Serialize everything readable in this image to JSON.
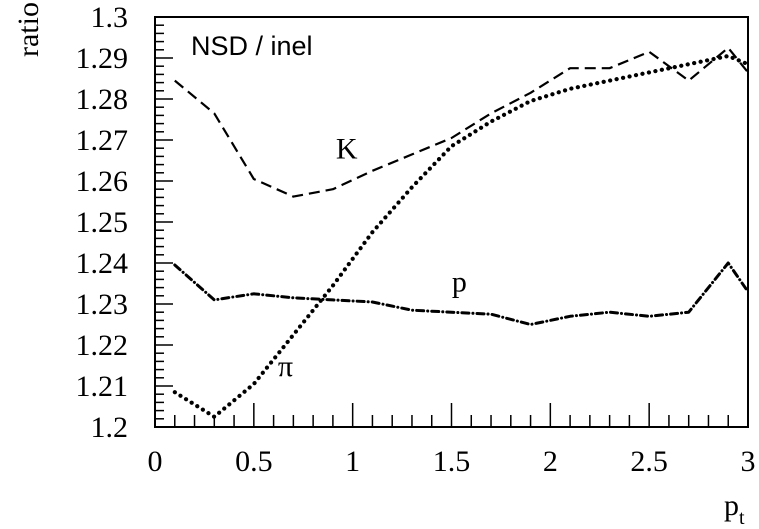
{
  "chart_data": {
    "type": "line",
    "title": "",
    "box_label": "NSD / inel",
    "xlabel": "p",
    "xlabel_sub": "t",
    "ylabel": "ratio",
    "xlim": [
      0,
      3
    ],
    "ylim": [
      1.2,
      1.3
    ],
    "x_ticks": [
      "0",
      "0.5",
      "1",
      "1.5",
      "2",
      "2.5",
      "3"
    ],
    "y_ticks": [
      "1.2",
      "1.21",
      "1.22",
      "1.23",
      "1.24",
      "1.25",
      "1.26",
      "1.27",
      "1.28",
      "1.29",
      "1.3"
    ],
    "grid": false,
    "series": [
      {
        "name": "K",
        "style": "dashed",
        "label_at": [
          0.97,
          1.2655
        ],
        "points": [
          [
            0.1,
            1.2845
          ],
          [
            0.3,
            1.2765
          ],
          [
            0.5,
            1.2605
          ],
          [
            0.7,
            1.2562
          ],
          [
            0.9,
            1.258
          ],
          [
            1.1,
            1.2625
          ],
          [
            1.3,
            1.2665
          ],
          [
            1.5,
            1.2705
          ],
          [
            1.7,
            1.2765
          ],
          [
            1.9,
            1.2815
          ],
          [
            2.1,
            1.2875
          ],
          [
            2.3,
            1.2875
          ],
          [
            2.5,
            1.2915
          ],
          [
            2.7,
            1.2845
          ],
          [
            2.9,
            1.2925
          ],
          [
            3.0,
            1.2865
          ]
        ]
      },
      {
        "name": "π",
        "style": "dotted",
        "label_at": [
          0.66,
          1.2125
        ],
        "points": [
          [
            0.1,
            1.2085
          ],
          [
            0.3,
            1.2025
          ],
          [
            0.5,
            1.2105
          ],
          [
            0.7,
            1.2225
          ],
          [
            0.9,
            1.2345
          ],
          [
            1.1,
            1.2475
          ],
          [
            1.3,
            1.2585
          ],
          [
            1.5,
            1.2685
          ],
          [
            1.7,
            1.2745
          ],
          [
            1.9,
            1.2795
          ],
          [
            2.1,
            1.2825
          ],
          [
            2.3,
            1.2845
          ],
          [
            2.5,
            1.2865
          ],
          [
            2.7,
            1.2885
          ],
          [
            2.9,
            1.2905
          ],
          [
            3.0,
            1.2885
          ]
        ]
      },
      {
        "name": "p",
        "style": "dashdot",
        "label_at": [
          1.54,
          1.233
        ],
        "points": [
          [
            0.1,
            1.2395
          ],
          [
            0.3,
            1.231
          ],
          [
            0.5,
            1.2325
          ],
          [
            0.7,
            1.2315
          ],
          [
            0.9,
            1.231
          ],
          [
            1.1,
            1.2305
          ],
          [
            1.3,
            1.2285
          ],
          [
            1.5,
            1.228
          ],
          [
            1.7,
            1.2275
          ],
          [
            1.9,
            1.225
          ],
          [
            2.1,
            1.227
          ],
          [
            2.3,
            1.228
          ],
          [
            2.5,
            1.227
          ],
          [
            2.7,
            1.228
          ],
          [
            2.9,
            1.24
          ],
          [
            3.0,
            1.233
          ]
        ]
      }
    ]
  }
}
